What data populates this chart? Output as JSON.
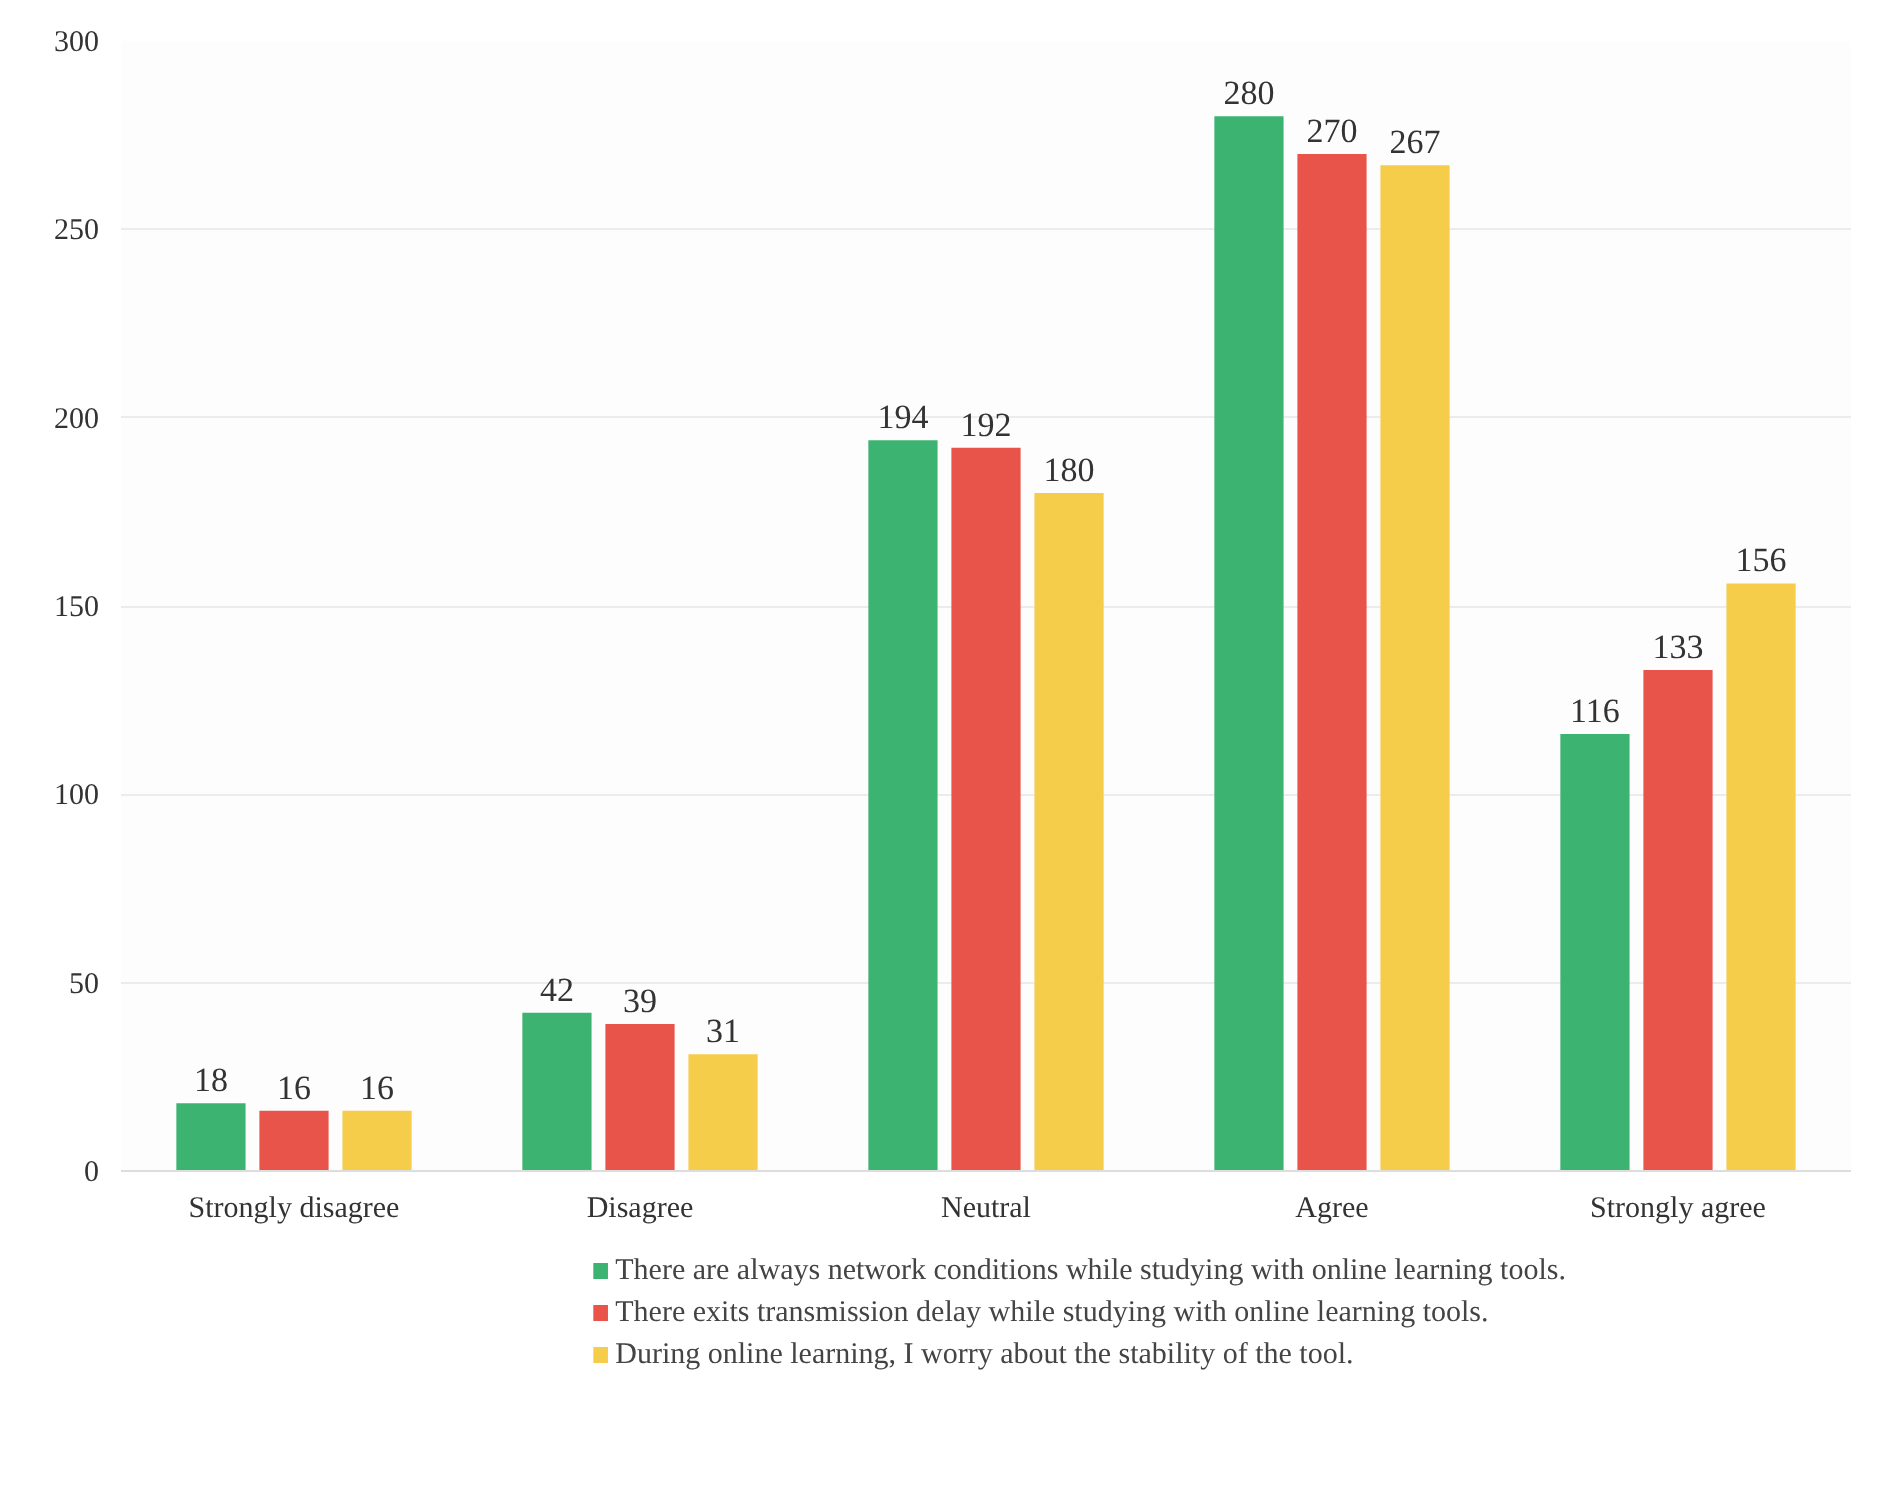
{
  "chart_data": {
    "type": "bar",
    "categories": [
      "Strongly disagree",
      "Disagree",
      "Neutral",
      "Agree",
      "Strongly agree"
    ],
    "series": [
      {
        "name": "There are always network conditions while studying with online learning tools.",
        "color": "#3cb371",
        "values": [
          18,
          42,
          194,
          280,
          116
        ]
      },
      {
        "name": "There exits transmission delay while studying with online learning tools.",
        "color": "#e8534a",
        "values": [
          16,
          39,
          192,
          270,
          133
        ]
      },
      {
        "name": "During online learning, I worry about the stability of the tool.",
        "color": "#f5cd4b",
        "values": [
          16,
          31,
          180,
          267,
          156
        ]
      }
    ],
    "ylim": [
      0,
      300
    ],
    "yticks": [
      0,
      50,
      100,
      150,
      200,
      250,
      300
    ],
    "grid": "y",
    "legend": "bottom",
    "data_labels": true
  }
}
